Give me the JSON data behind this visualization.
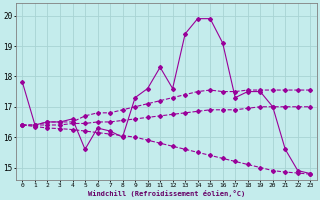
{
  "xlabel": "Windchill (Refroidissement éolien,°C)",
  "bg_color": "#c4ecec",
  "grid_color": "#a8d4d4",
  "line_color": "#990099",
  "xlim": [
    -0.5,
    23.5
  ],
  "ylim": [
    14.6,
    20.4
  ],
  "yticks": [
    15,
    16,
    17,
    18,
    19,
    20
  ],
  "xticks": [
    0,
    1,
    2,
    3,
    4,
    5,
    6,
    7,
    8,
    9,
    10,
    11,
    12,
    13,
    14,
    15,
    16,
    17,
    18,
    19,
    20,
    21,
    22,
    23
  ],
  "x": [
    0,
    1,
    2,
    3,
    4,
    5,
    6,
    7,
    8,
    9,
    10,
    11,
    12,
    13,
    14,
    15,
    16,
    17,
    18,
    19,
    20,
    21,
    22,
    23
  ],
  "line1": [
    17.8,
    16.4,
    16.5,
    16.5,
    16.6,
    15.6,
    16.3,
    16.2,
    16.0,
    17.3,
    17.6,
    18.3,
    17.6,
    19.4,
    19.9,
    19.9,
    19.1,
    17.3,
    17.5,
    17.5,
    17.0,
    15.6,
    14.9,
    14.8
  ],
  "line2": [
    16.4,
    16.4,
    16.5,
    16.5,
    16.5,
    16.7,
    16.8,
    16.8,
    16.9,
    17.0,
    17.1,
    17.2,
    17.3,
    17.4,
    17.5,
    17.55,
    17.5,
    17.5,
    17.55,
    17.55,
    17.55,
    17.55,
    17.55,
    17.55
  ],
  "line3": [
    16.4,
    16.4,
    16.4,
    16.4,
    16.45,
    16.45,
    16.5,
    16.5,
    16.55,
    16.6,
    16.65,
    16.7,
    16.75,
    16.8,
    16.85,
    16.9,
    16.9,
    16.9,
    16.95,
    17.0,
    17.0,
    17.0,
    17.0,
    17.0
  ],
  "line4": [
    16.4,
    16.35,
    16.3,
    16.28,
    16.25,
    16.2,
    16.15,
    16.1,
    16.05,
    16.0,
    15.9,
    15.8,
    15.7,
    15.6,
    15.5,
    15.4,
    15.3,
    15.2,
    15.1,
    15.0,
    14.9,
    14.85,
    14.82,
    14.78
  ]
}
